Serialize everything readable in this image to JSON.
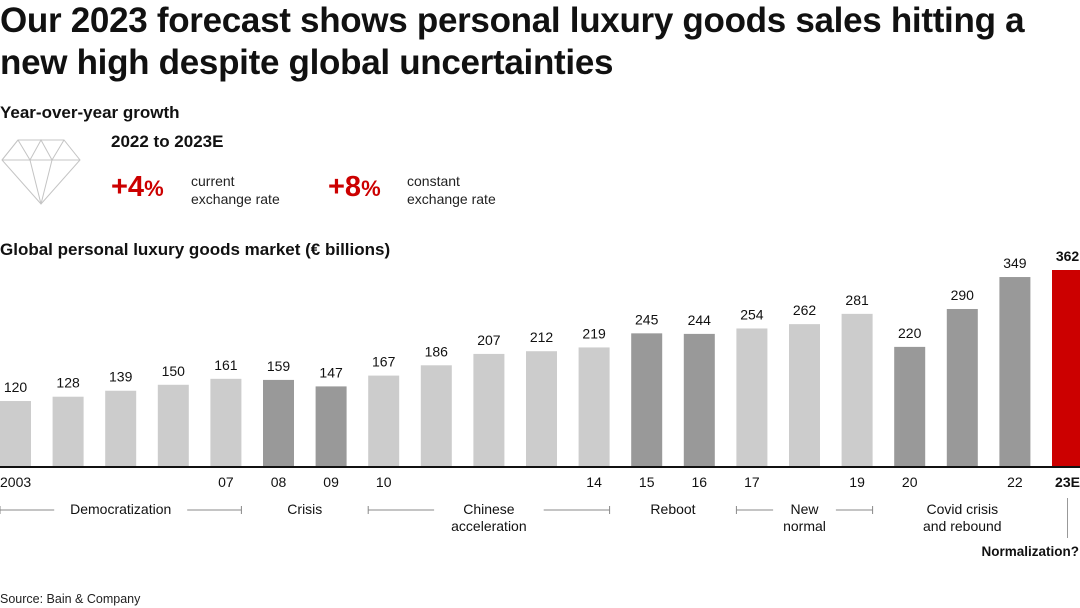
{
  "title": "Our 2023 forecast shows personal luxury goods sales hitting a new high despite global uncertainties",
  "yoy": {
    "heading": "Year-over-year growth",
    "period": "2022 to 2023E",
    "current": {
      "value": "+4",
      "unit": "%",
      "label_line1": "current",
      "label_line2": "exchange rate"
    },
    "constant": {
      "value": "+8",
      "unit": "%",
      "label_line1": "constant",
      "label_line2": "exchange rate"
    }
  },
  "icons": {
    "diamond": "diamond-icon"
  },
  "colors": {
    "light_bar": "#cccccc",
    "dark_bar": "#999999",
    "highlight_bar": "#cc0000",
    "accent_text": "#cc0000"
  },
  "chart_data": {
    "type": "bar",
    "title": "Global personal luxury goods market (€ billions)",
    "xlabel": "",
    "ylabel": "",
    "ylim": [
      0,
      362
    ],
    "grid": false,
    "categories": [
      "2003",
      "",
      "",
      "",
      "07",
      "08",
      "09",
      "10",
      "",
      "",
      "",
      "14",
      "15",
      "16",
      "17",
      "",
      "19",
      "20",
      "",
      "22",
      "23E"
    ],
    "values": [
      120,
      128,
      139,
      150,
      161,
      159,
      147,
      167,
      186,
      207,
      212,
      219,
      245,
      244,
      254,
      262,
      281,
      220,
      290,
      349,
      362
    ],
    "shade": [
      "light",
      "light",
      "light",
      "light",
      "light",
      "dark",
      "dark",
      "light",
      "light",
      "light",
      "light",
      "light",
      "dark",
      "dark",
      "light",
      "light",
      "light",
      "dark",
      "dark",
      "dark",
      "highlight"
    ],
    "phases": [
      {
        "label": "Democratization",
        "from": 0,
        "to": 4,
        "bracket": true
      },
      {
        "label": "Crisis",
        "from": 5,
        "to": 6,
        "bracket": false
      },
      {
        "label": "Chinese\nacceleration",
        "from": 7,
        "to": 11,
        "bracket": true
      },
      {
        "label": "Reboot",
        "from": 12,
        "to": 13,
        "bracket": false
      },
      {
        "label": "New\nnormal",
        "from": 14,
        "to": 16,
        "bracket": true
      },
      {
        "label": "Covid crisis\nand rebound",
        "from": 17,
        "to": 19,
        "bracket": false
      },
      {
        "label": "Normalization?",
        "from": 20,
        "to": 20,
        "bracket": false
      }
    ]
  },
  "source": "Source: Bain & Company"
}
